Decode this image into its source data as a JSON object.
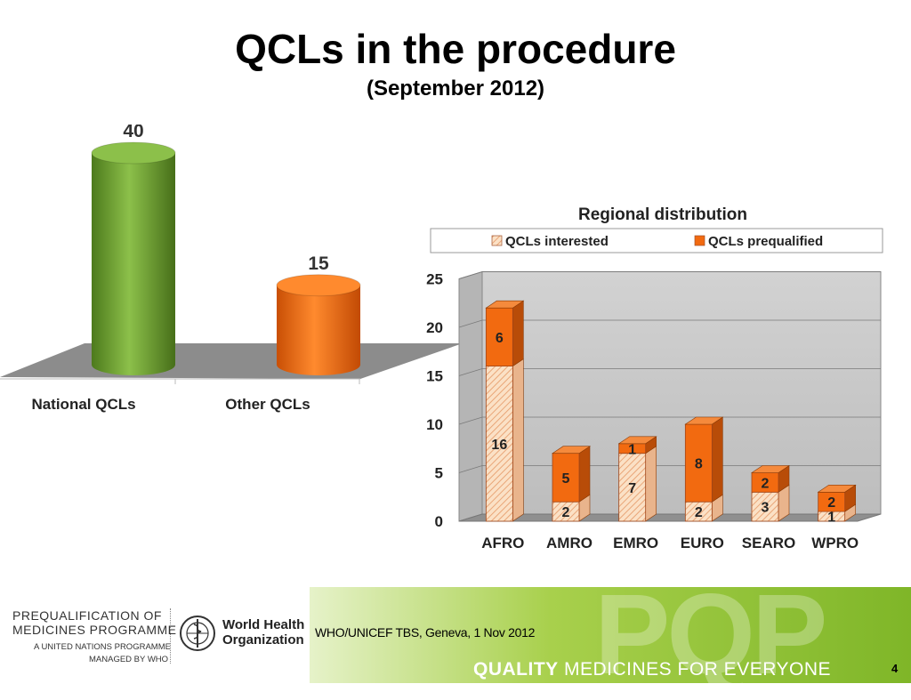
{
  "slide": {
    "title": "QCLs in the procedure",
    "subtitle": "(September 2012)",
    "page_number": "4"
  },
  "footer": {
    "programme_line1": "PREQUALIFICATION OF",
    "programme_line2": "MEDICINES PROGRAMME",
    "programme_line3": "A UNITED NATIONS PROGRAMME",
    "programme_line4": "MANAGED BY WHO",
    "who_name_line1": "World Health",
    "who_name_line2": "Organization",
    "event": "WHO/UNICEF TBS, Geneva, 1 Nov 2012",
    "tagline_bold": "QUALITY",
    "tagline_rest": " MEDICINES FOR EVERYONE",
    "logo_letters": "PQP"
  },
  "chart_data": [
    {
      "type": "bar",
      "title": "",
      "categories": [
        "National QCLs",
        "Other QCLs"
      ],
      "values": [
        40,
        15
      ],
      "data_labels": [
        "40",
        "15"
      ],
      "colors": [
        "#6a9a2e",
        "#ee6a10"
      ],
      "ylim": [
        0,
        40
      ],
      "grid": false,
      "legend": "none"
    },
    {
      "type": "bar",
      "stacked": true,
      "title": "Regional distribution",
      "categories": [
        "AFRO",
        "AMRO",
        "EMRO",
        "EURO",
        "SEARO",
        "WPRO"
      ],
      "series": [
        {
          "name": "QCLs interested",
          "values": [
            16,
            2,
            7,
            2,
            3,
            1
          ],
          "color": "#f8cfa8"
        },
        {
          "name": "QCLs prequalified",
          "values": [
            6,
            5,
            1,
            8,
            2,
            2
          ],
          "color": "#f26a10"
        }
      ],
      "yticks": [
        "0",
        "5",
        "10",
        "15",
        "20",
        "25"
      ],
      "ylim": [
        0,
        25
      ],
      "grid": true,
      "legend": "top"
    }
  ]
}
